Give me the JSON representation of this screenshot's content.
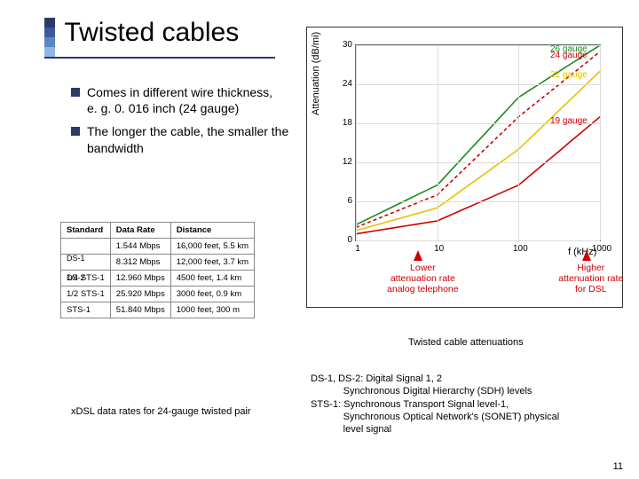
{
  "title": "Twisted cables",
  "title_bar_colors": [
    "#2b3a67",
    "#3c5a9a",
    "#5b87c7",
    "#8fb7e6"
  ],
  "underline_color": "#2b3a67",
  "bullet_color": "#2b3a67",
  "bullets": [
    "Comes in different wire thickness,\ne. g. 0. 016 inch (24 gauge)",
    "The longer the cable, the smaller the bandwidth"
  ],
  "table": {
    "columns": [
      "Standard",
      "Data Rate",
      "Distance"
    ],
    "rows": [
      [
        "",
        "1.544 Mbps",
        "16,000 feet, 5.5 km"
      ],
      [
        "",
        "8.312 Mbps",
        "12,000 feet, 3.7 km"
      ],
      [
        "1/4 STS-1",
        "12.960 Mbps",
        "4500 feet, 1.4 km"
      ],
      [
        "1/2 STS-1",
        "25.920 Mbps",
        "3000 feet, 0.9 km"
      ],
      [
        "STS-1",
        "51.840 Mbps",
        "1000 feet, 300 m"
      ]
    ],
    "caption": "xDSL data rates for 24-gauge twisted pair",
    "overlay_labels": [
      "DS-1",
      "DS-2"
    ],
    "header_bg": "#ffffff",
    "border_color": "#888888"
  },
  "chart": {
    "type": "line",
    "xscale": "log",
    "ylabel": "Attenuation (dB/mi)",
    "xlabel": "f (kHz)",
    "ylim": [
      0,
      30
    ],
    "ytick_step": 6,
    "xlim": [
      1,
      1000
    ],
    "xticks": [
      1,
      10,
      100,
      1000
    ],
    "grid_color": "#dddddd",
    "background": "#ffffff",
    "border_color": "#666666",
    "series": [
      {
        "label": "26 gauge",
        "color": "#1a8a1a",
        "dash": "none",
        "points": [
          [
            1,
            2.4
          ],
          [
            10,
            8.5
          ],
          [
            100,
            22
          ],
          [
            1000,
            30
          ]
        ]
      },
      {
        "label": "24 gauge",
        "color": "#cc0000",
        "dash": "4,3",
        "points": [
          [
            1,
            2.0
          ],
          [
            10,
            7
          ],
          [
            100,
            19
          ],
          [
            1000,
            29
          ]
        ]
      },
      {
        "label": "22 gauge",
        "color": "#e6c200",
        "dash": "none",
        "points": [
          [
            1,
            1.5
          ],
          [
            10,
            5
          ],
          [
            100,
            14
          ],
          [
            1000,
            26
          ]
        ]
      },
      {
        "label": "19 gauge",
        "color": "#cc0000",
        "dash": "none",
        "points": [
          [
            1,
            1.0
          ],
          [
            10,
            3
          ],
          [
            100,
            8.5
          ],
          [
            1000,
            19
          ]
        ]
      }
    ],
    "legend_pos": "right",
    "caption": "Twisted cable attenuations",
    "annotations": [
      {
        "x": 6,
        "text": "Lower\nattenuation rate\nanalog telephone"
      },
      {
        "x": 700,
        "text": "Higher\nattenuation rate\nfor DSL"
      }
    ],
    "annotation_color": "#cc0000"
  },
  "definitions": "DS-1, DS-2: Digital Signal 1, 2\n            Synchronous Digital Hierarchy (SDH) levels\nSTS-1:  Synchronous Transport Signal level-1,\n            Synchronous Optical Network's (SONET) physical\n            level signal",
  "page_number": "11"
}
